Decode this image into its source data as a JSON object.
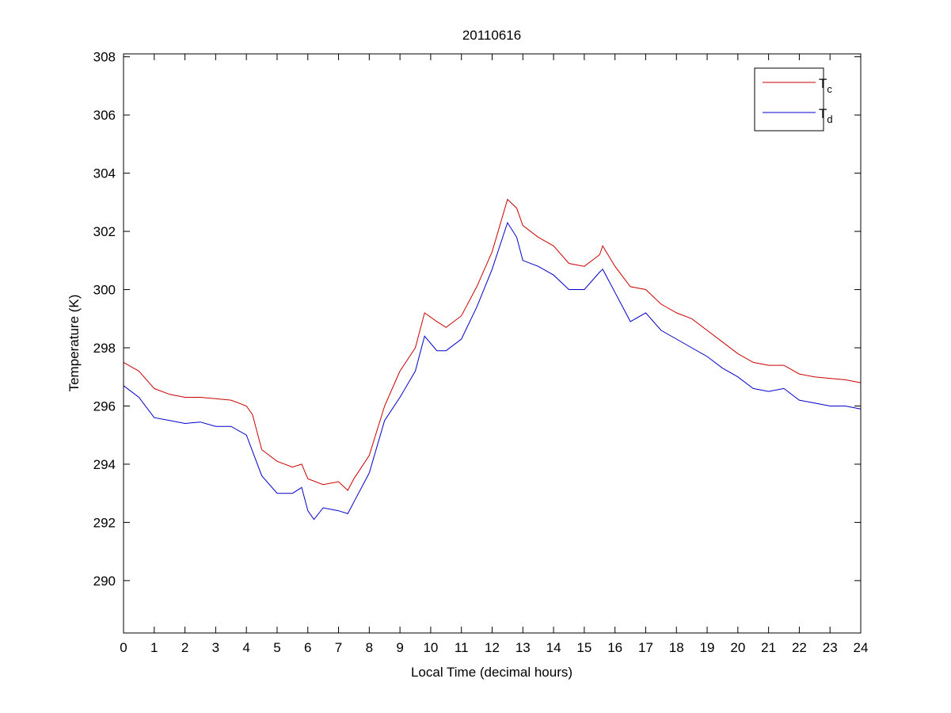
{
  "chart_data": {
    "type": "line",
    "title": "20110616",
    "xlabel": "Local Time (decimal hours)",
    "ylabel": "Temperature (K)",
    "xlim": [
      0,
      24
    ],
    "ylim": [
      288.2,
      308.1
    ],
    "xticks": [
      0,
      1,
      2,
      3,
      4,
      5,
      6,
      7,
      8,
      9,
      10,
      11,
      12,
      13,
      14,
      15,
      16,
      17,
      18,
      19,
      20,
      21,
      22,
      23,
      24
    ],
    "yticks": [
      290,
      292,
      294,
      296,
      298,
      300,
      302,
      304,
      306,
      308
    ],
    "grid": false,
    "legend_position": "top-right",
    "series": [
      {
        "name": "T",
        "subscript": "c",
        "color": "#cc0000",
        "x": [
          0,
          0.5,
          1,
          1.5,
          2,
          2.5,
          3,
          3.5,
          4,
          4.2,
          4.5,
          5,
          5.5,
          5.8,
          6,
          6.5,
          7,
          7.3,
          7.5,
          8,
          8.5,
          9,
          9.5,
          9.8,
          10.2,
          10.5,
          11,
          11.5,
          12,
          12.5,
          12.8,
          13,
          13.5,
          14,
          14.5,
          15,
          15.5,
          15.6,
          16,
          16.5,
          17,
          17.5,
          18,
          18.5,
          19,
          19.5,
          20,
          20.5,
          21,
          21.5,
          22,
          22.5,
          23,
          23.5,
          24
        ],
        "y": [
          297.5,
          297.2,
          296.6,
          296.4,
          296.3,
          296.3,
          296.25,
          296.2,
          296.0,
          295.7,
          294.5,
          294.1,
          293.9,
          294.0,
          293.5,
          293.3,
          293.4,
          293.1,
          293.5,
          294.3,
          296.0,
          297.2,
          298.0,
          299.2,
          298.9,
          298.7,
          299.1,
          300.1,
          301.3,
          303.1,
          302.8,
          302.2,
          301.8,
          301.5,
          300.9,
          300.8,
          301.2,
          301.5,
          300.8,
          300.1,
          300.0,
          299.5,
          299.2,
          299.0,
          298.6,
          298.2,
          297.8,
          297.5,
          297.4,
          297.4,
          297.1,
          297.0,
          296.95,
          296.9,
          296.8
        ]
      },
      {
        "name": "T",
        "subscript": "d",
        "color": "#0000cc",
        "x": [
          0,
          0.5,
          1,
          1.5,
          2,
          2.5,
          3,
          3.5,
          4,
          4.5,
          5,
          5.5,
          5.8,
          6,
          6.2,
          6.5,
          7,
          7.3,
          7.5,
          8,
          8.5,
          9,
          9.5,
          9.8,
          10.2,
          10.5,
          11,
          11.5,
          12,
          12.5,
          12.8,
          13,
          13.5,
          14,
          14.5,
          15,
          15.5,
          15.6,
          16,
          16.5,
          17,
          17.5,
          18,
          18.5,
          19,
          19.5,
          20,
          20.5,
          21,
          21.5,
          22,
          22.5,
          23,
          23.5,
          24
        ],
        "y": [
          296.7,
          296.3,
          295.6,
          295.5,
          295.4,
          295.45,
          295.3,
          295.3,
          295.0,
          293.6,
          293.0,
          293.0,
          293.2,
          292.4,
          292.1,
          292.5,
          292.4,
          292.3,
          292.7,
          293.7,
          295.5,
          296.3,
          297.2,
          298.4,
          297.9,
          297.9,
          298.3,
          299.4,
          300.7,
          302.3,
          301.8,
          301.0,
          300.8,
          300.5,
          300.0,
          300.0,
          300.6,
          300.7,
          299.9,
          298.9,
          299.2,
          298.6,
          298.3,
          298.0,
          297.7,
          297.3,
          297.0,
          296.6,
          296.5,
          296.6,
          296.2,
          296.1,
          296.0,
          296.0,
          295.9
        ]
      }
    ]
  }
}
